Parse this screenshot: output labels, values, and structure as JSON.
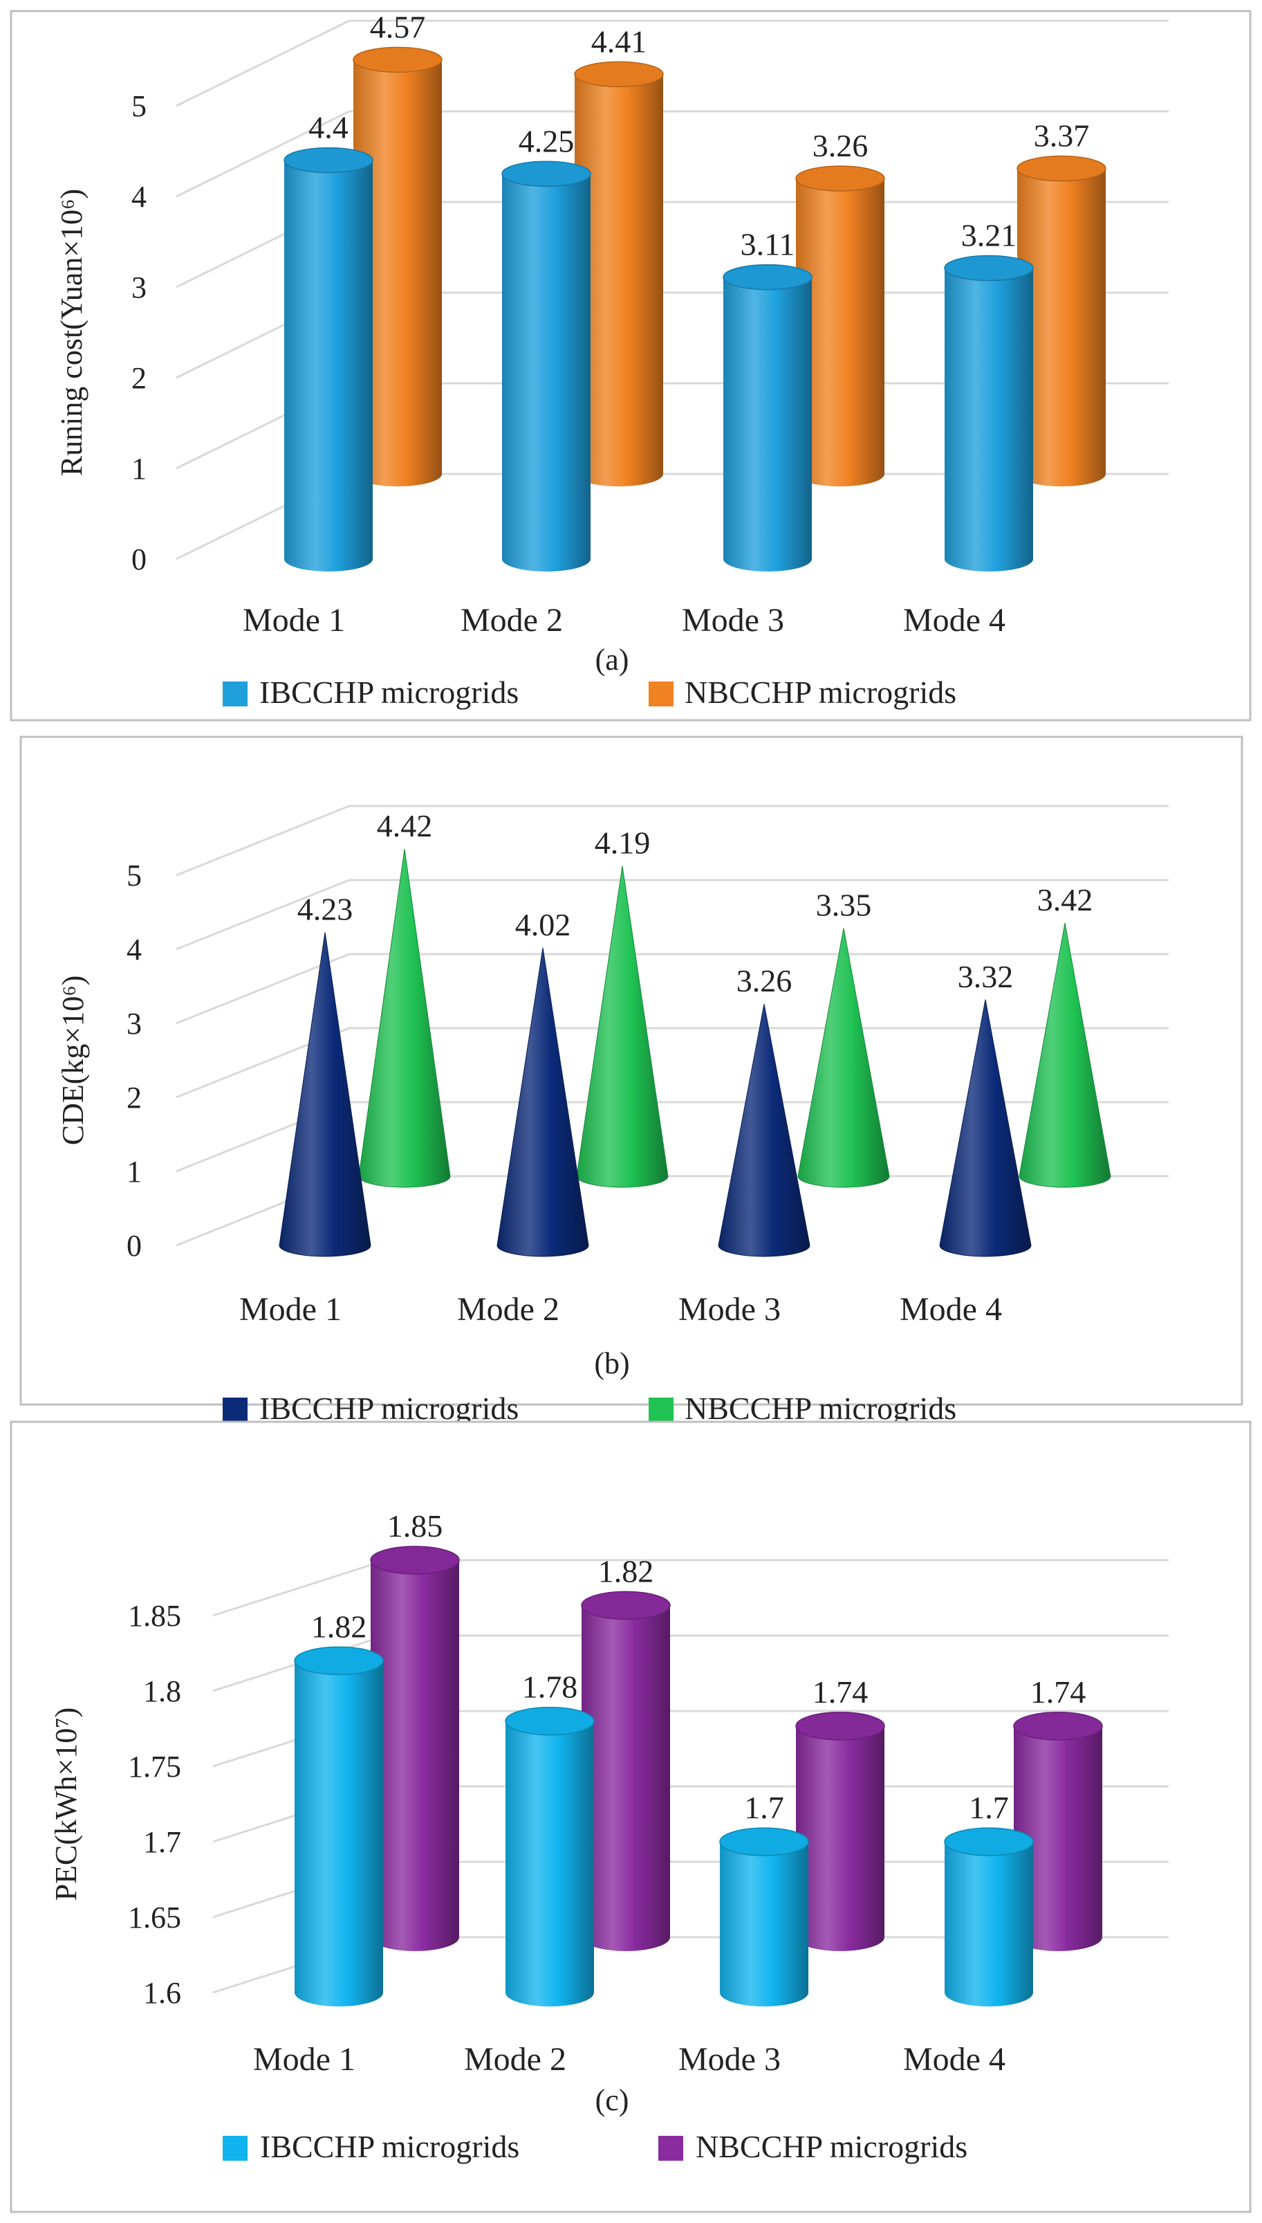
{
  "chart_data": [
    {
      "type": "bar",
      "panel": "(a)",
      "shape": "cylinder",
      "ylabel": "Runing cost(Yuan×10⁶)",
      "ylim": [
        0,
        5
      ],
      "yticks": [
        "0",
        "1",
        "2",
        "3",
        "4",
        "5"
      ],
      "categories": [
        "Mode 1",
        "Mode 2",
        "Mode 3",
        "Mode 4"
      ],
      "series": [
        {
          "name": "IBCCHP microgrids",
          "color": "#1fa0dd",
          "values": [
            4.4,
            4.25,
            3.11,
            3.21
          ],
          "labels": [
            "4.4",
            "4.25",
            "3.11",
            "3.21"
          ]
        },
        {
          "name": "NBCCHP microgrids",
          "color": "#f08221",
          "values": [
            4.57,
            4.41,
            3.26,
            3.37
          ],
          "labels": [
            "4.57",
            "4.41",
            "3.26",
            "3.37"
          ]
        }
      ],
      "legend": "bottom"
    },
    {
      "type": "bar",
      "panel": "(b)",
      "shape": "cone",
      "ylabel": "CDE(kg×10⁶)",
      "ylim": [
        0,
        5
      ],
      "yticks": [
        "0",
        "1",
        "2",
        "3",
        "4",
        "5"
      ],
      "categories": [
        "Mode 1",
        "Mode 2",
        "Mode 3",
        "Mode 4"
      ],
      "series": [
        {
          "name": "IBCCHP microgrids",
          "color": "#0b2a78",
          "values": [
            4.23,
            4.02,
            3.26,
            3.32
          ],
          "labels": [
            "4.23",
            "4.02",
            "3.26",
            "3.32"
          ]
        },
        {
          "name": "NBCCHP microgrids",
          "color": "#1fc253",
          "values": [
            4.42,
            4.19,
            3.35,
            3.42
          ],
          "labels": [
            "4.42",
            "4.19",
            "3.35",
            "3.42"
          ]
        }
      ],
      "legend": "bottom"
    },
    {
      "type": "bar",
      "panel": "(c)",
      "shape": "cylinder",
      "ylabel": "PEC(kWh×10⁷)",
      "ylim": [
        1.6,
        1.85
      ],
      "yticks": [
        "1.6",
        "1.65",
        "1.7",
        "1.75",
        "1.8",
        "1.85"
      ],
      "categories": [
        "Mode 1",
        "Mode 2",
        "Mode 3",
        "Mode 4"
      ],
      "series": [
        {
          "name": "IBCCHP microgrids",
          "color": "#11b4ef",
          "values": [
            1.82,
            1.78,
            1.7,
            1.7
          ],
          "labels": [
            "1.82",
            "1.78",
            "1.7",
            "1.7"
          ]
        },
        {
          "name": "NBCCHP microgrids",
          "color": "#8a2ba0",
          "values": [
            1.85,
            1.82,
            1.74,
            1.74
          ],
          "labels": [
            "1.85",
            "1.82",
            "1.74",
            "1.74"
          ]
        }
      ],
      "legend": "bottom"
    }
  ]
}
